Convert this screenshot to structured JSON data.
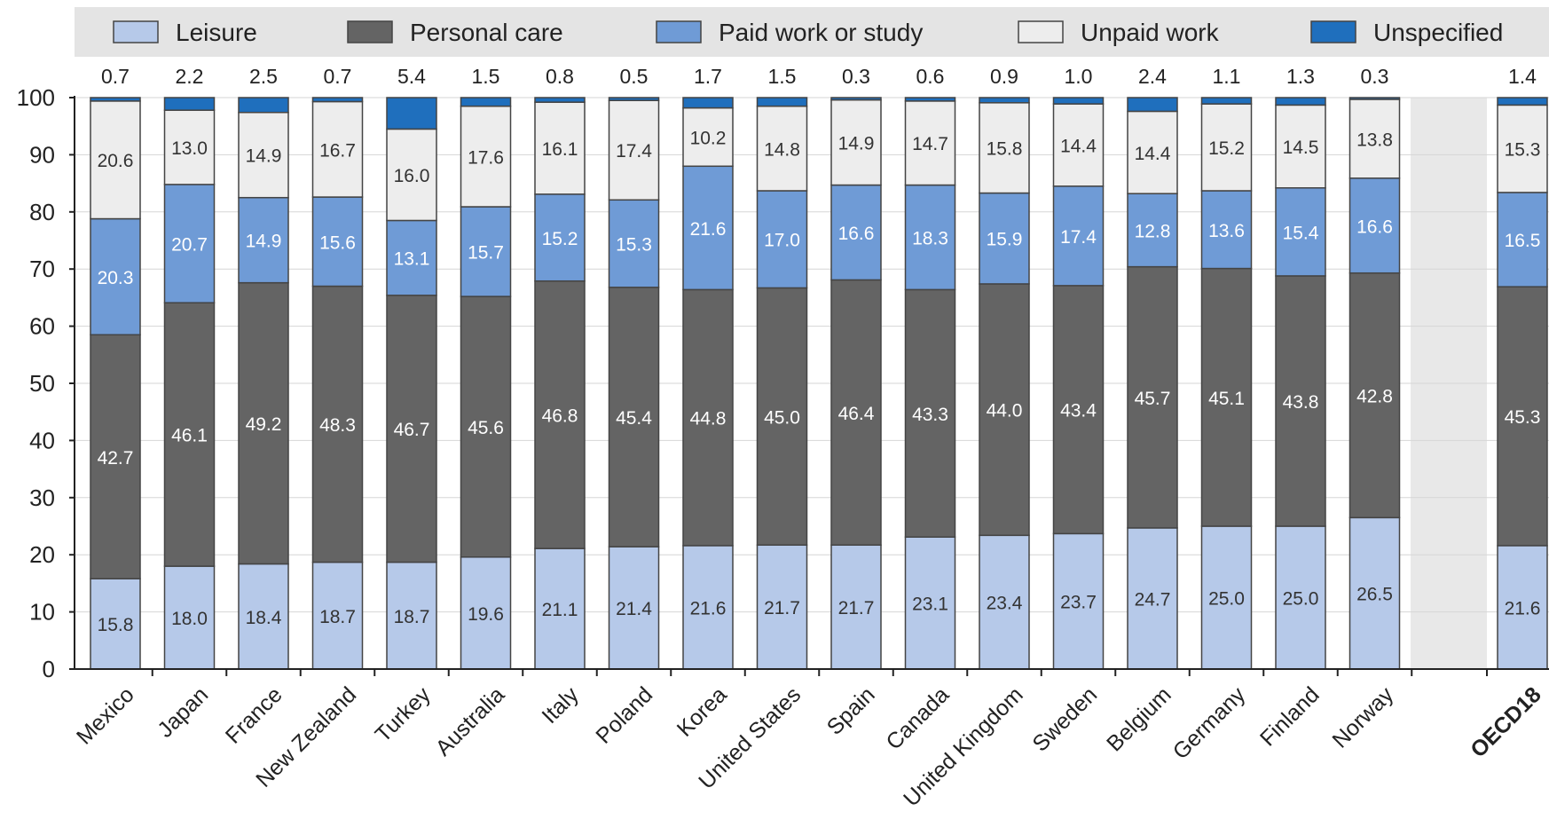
{
  "chart_data": {
    "type": "bar",
    "stacked": true,
    "categories": [
      "Mexico",
      "Japan",
      "France",
      "New Zealand",
      "Turkey",
      "Australia",
      "Italy",
      "Poland",
      "Korea",
      "United States",
      "Spain",
      "Canada",
      "United Kingdom",
      "Sweden",
      "Belgium",
      "Germany",
      "Finland",
      "Norway",
      "OECD18"
    ],
    "series": [
      {
        "name": "Leisure",
        "color": "#b6c9e9",
        "values": [
          15.8,
          18.0,
          18.4,
          18.7,
          18.7,
          19.6,
          21.1,
          21.4,
          21.6,
          21.7,
          21.7,
          23.1,
          23.4,
          23.7,
          24.7,
          25.0,
          25.0,
          26.5,
          21.6
        ]
      },
      {
        "name": "Personal care",
        "color": "#646464",
        "values": [
          42.7,
          46.1,
          49.2,
          48.3,
          46.7,
          45.6,
          46.8,
          45.4,
          44.8,
          45.0,
          46.4,
          43.3,
          44.0,
          43.4,
          45.7,
          45.1,
          43.8,
          42.8,
          45.3
        ]
      },
      {
        "name": "Paid work or study",
        "color": "#6f9bd6",
        "values": [
          20.3,
          20.7,
          14.9,
          15.6,
          13.1,
          15.7,
          15.2,
          15.3,
          21.6,
          17.0,
          16.6,
          18.3,
          15.9,
          17.4,
          12.8,
          13.6,
          15.4,
          16.6,
          16.5
        ]
      },
      {
        "name": "Unpaid work",
        "color": "#ededed",
        "values": [
          20.6,
          13.0,
          14.9,
          16.7,
          16.0,
          17.6,
          16.1,
          17.4,
          10.2,
          14.8,
          14.9,
          14.7,
          15.8,
          14.4,
          14.4,
          15.2,
          14.5,
          13.8,
          15.3
        ]
      },
      {
        "name": "Unspecified",
        "color": "#1f6fbd",
        "values": [
          0.7,
          2.2,
          2.5,
          0.7,
          5.4,
          1.5,
          0.8,
          0.5,
          1.7,
          1.5,
          0.3,
          0.6,
          0.9,
          1.0,
          2.4,
          1.1,
          1.3,
          0.3,
          1.4
        ]
      }
    ],
    "top_labels": [
      "0.7",
      "2.2",
      "2.5",
      "0.7",
      "5.4",
      "1.5",
      "0.8",
      "0.5",
      "1.7",
      "1.5",
      "0.3",
      "0.6",
      "0.9",
      "1.0",
      "2.4",
      "1.1",
      "1.3",
      "0.3",
      "1.4"
    ],
    "segment_labels": [
      [
        "15.8",
        "18.0",
        "18.4",
        "18.7",
        "18.7",
        "19.6",
        "21.1",
        "21.4",
        "21.6",
        "21.7",
        "21.7",
        "23.1",
        "23.4",
        "23.7",
        "24.7",
        "25.0",
        "25.0",
        "26.5",
        "21.6"
      ],
      [
        "42.7",
        "46.1",
        "49.2",
        "48.3",
        "46.7",
        "45.6",
        "46.8",
        "45.4",
        "44.8",
        "45.0",
        "46.4",
        "43.3",
        "44.0",
        "43.4",
        "45.7",
        "45.1",
        "43.8",
        "42.8",
        "45.3"
      ],
      [
        "20.3",
        "20.7",
        "14.9",
        "15.6",
        "13.1",
        "15.7",
        "15.2",
        "15.3",
        "21.6",
        "17.0",
        "16.6",
        "18.3",
        "15.9",
        "17.4",
        "12.8",
        "13.6",
        "15.4",
        "16.6",
        "16.5"
      ],
      [
        "20.6",
        "13.0",
        "14.9",
        "16.7",
        "16.0",
        "17.6",
        "16.1",
        "17.4",
        "10.2",
        "14.8",
        "14.9",
        "14.7",
        "15.8",
        "14.4",
        "14.4",
        "15.2",
        "14.5",
        "13.8",
        "15.3"
      ]
    ],
    "yticks": [
      "0",
      "10",
      "20",
      "30",
      "40",
      "50",
      "60",
      "70",
      "80",
      "90",
      "100"
    ],
    "ylim": [
      0,
      100
    ],
    "highlight_category": "OECD18",
    "legend_position": "top",
    "title": "",
    "xlabel": "",
    "ylabel": ""
  }
}
